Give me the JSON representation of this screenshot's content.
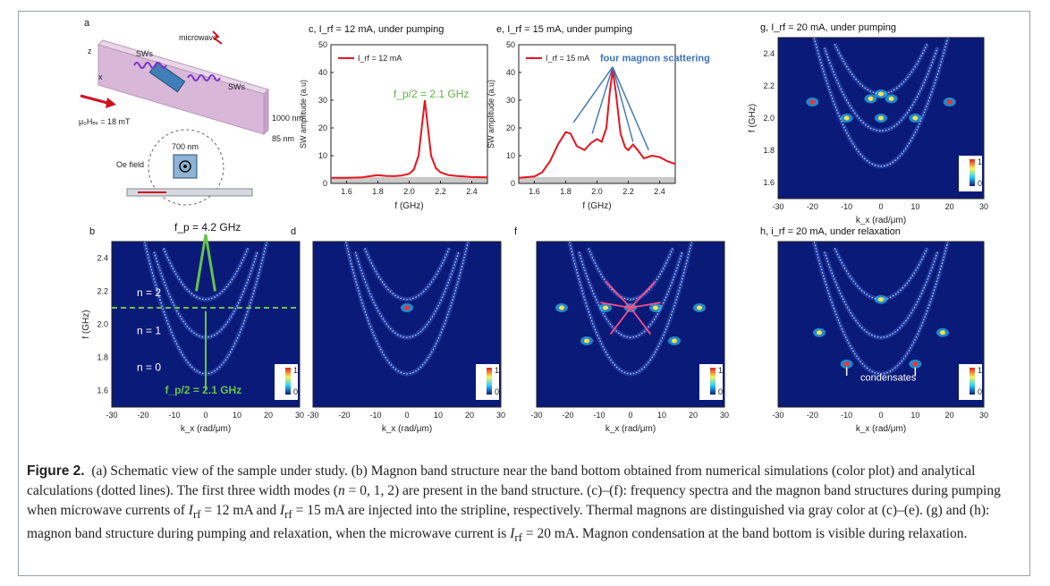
{
  "panels": {
    "a": {
      "letter": "a",
      "microwave": "microwave",
      "sw": "SWs",
      "field": "μ₀Hₑₓ = 18 mT",
      "width": "700 nm",
      "length": "1000 nm",
      "thickness": "85 nm",
      "oe": "Oe field",
      "strip": "Strip"
    },
    "c": {
      "title": "c, I_rf = 12 mA, under pumping",
      "legend": "I_rf = 12 mA",
      "annot": "f_p/2 = 2.1 GHz",
      "ylabel": "SW amplitude (a.u)",
      "xlabel": "f (GHz)"
    },
    "e": {
      "title": "e, I_rf = 15 mA, under pumping",
      "legend": "I_rf = 15 mA",
      "annot": "four magnon scattering",
      "ylabel": "SW amplitude (a.u)",
      "xlabel": "f (GHz)"
    },
    "g": {
      "title": "g, I_rf = 20 mA, under pumping",
      "ylabel": "f (GHz)",
      "xlabel": "k_x (rad/μm)"
    },
    "b": {
      "letter": "b",
      "pump": "f_p = 4.2 GHz",
      "half": "f_p/2 = 2.1 GHz",
      "n2": "n = 2",
      "n1": "n = 1",
      "n0": "n = 0",
      "ylabel": "f (GHz)",
      "xlabel": "k_x (rad/μm)"
    },
    "d": {
      "letter": "d",
      "xlabel": "k_x (rad/μm)"
    },
    "f": {
      "letter": "f",
      "xlabel": "k_x (rad/μm)"
    },
    "h": {
      "title": "h, i_rf = 20 mA, under relaxation",
      "annot": "condensates",
      "xlabel": "k_x (rad/μm)"
    },
    "colorbar": {
      "label": "FFT power",
      "max": "1",
      "min": "0"
    }
  },
  "chart_data": [
    {
      "type": "line",
      "panel": "c",
      "title": "c, I_rf = 12 mA, under pumping",
      "xlabel": "f (GHz)",
      "ylabel": "SW amplitude (a.u)",
      "xlim": [
        1.5,
        2.5
      ],
      "ylim": [
        0,
        50
      ],
      "xticks": [
        "1.6",
        "1.8",
        "2.0",
        "2.2",
        "2.4"
      ],
      "yticks": [
        "0",
        "10",
        "20",
        "30",
        "40",
        "50"
      ],
      "series": [
        {
          "name": "I_rf = 12 mA",
          "color": "#e8141e",
          "x": [
            1.5,
            1.6,
            1.7,
            1.75,
            1.8,
            1.85,
            1.9,
            1.95,
            2.0,
            2.03,
            2.06,
            2.08,
            2.1,
            2.12,
            2.14,
            2.17,
            2.2,
            2.25,
            2.3,
            2.4,
            2.5
          ],
          "y": [
            2,
            2,
            2.2,
            2.6,
            3,
            2.7,
            2.6,
            2.8,
            3.5,
            5,
            10,
            20,
            30,
            20,
            10,
            5.5,
            4,
            3,
            2.7,
            2.3,
            2.2
          ]
        }
      ]
    },
    {
      "type": "line",
      "panel": "e",
      "title": "e, I_rf = 15 mA, under pumping",
      "xlabel": "f (GHz)",
      "ylabel": "SW amplitude (a.u)",
      "xlim": [
        1.5,
        2.5
      ],
      "ylim": [
        0,
        50
      ],
      "xticks": [
        "1.6",
        "1.8",
        "2.0",
        "2.2",
        "2.4"
      ],
      "yticks": [
        "0",
        "10",
        "20",
        "30",
        "40",
        "50"
      ],
      "series": [
        {
          "name": "I_rf = 15 mA",
          "color": "#e8141e",
          "x": [
            1.5,
            1.6,
            1.65,
            1.7,
            1.75,
            1.8,
            1.83,
            1.87,
            1.92,
            1.96,
            2.0,
            2.03,
            2.06,
            2.08,
            2.1,
            2.12,
            2.15,
            2.18,
            2.2,
            2.23,
            2.26,
            2.3,
            2.35,
            2.4,
            2.45,
            2.5
          ],
          "y": [
            2,
            2.5,
            4,
            8,
            14,
            18.5,
            18,
            13.5,
            12,
            14.5,
            16,
            15,
            20,
            32,
            41,
            33,
            18,
            13,
            12,
            14,
            12,
            9,
            10,
            9.5,
            8,
            7
          ]
        }
      ]
    }
  ]
}
